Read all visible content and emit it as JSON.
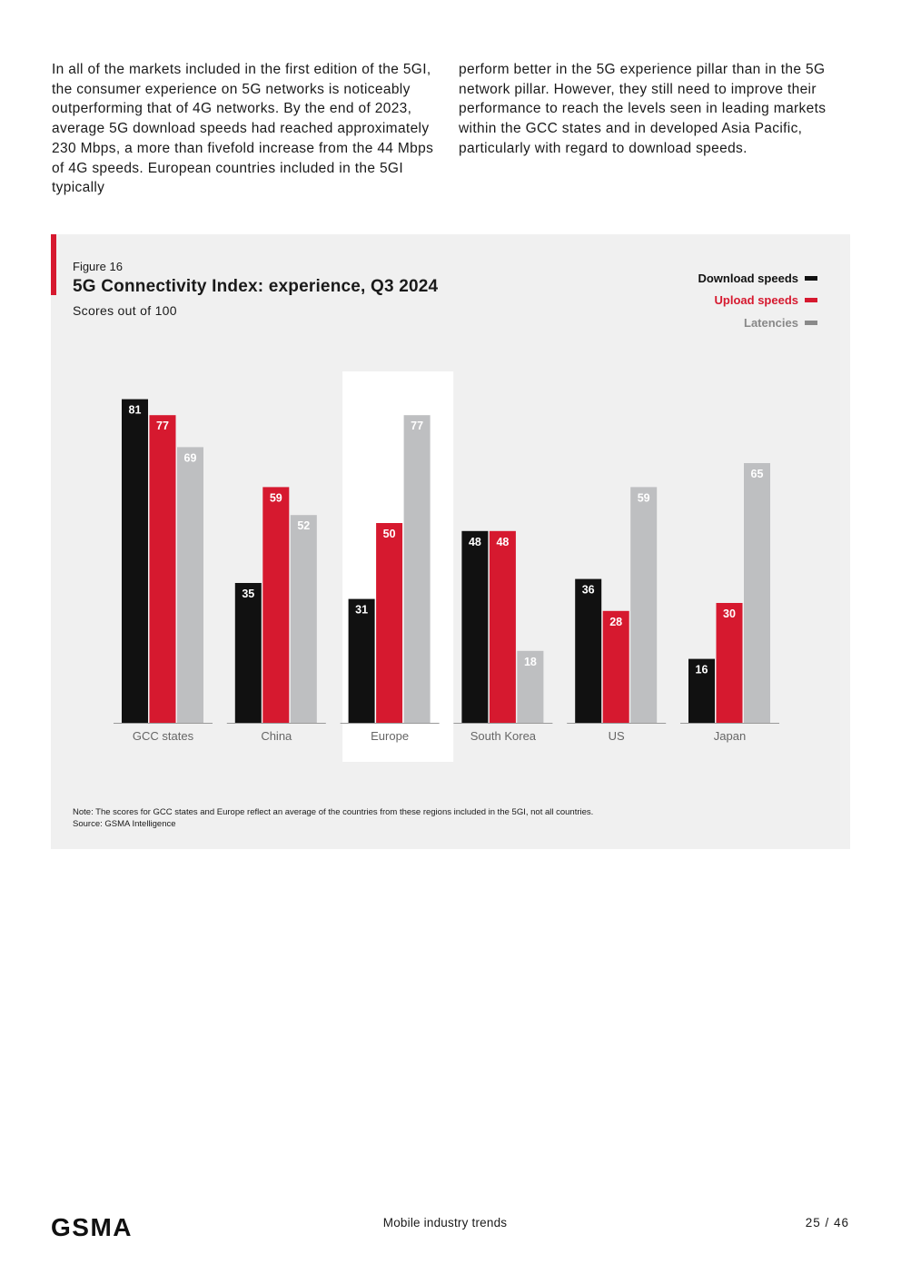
{
  "intro": {
    "col1": "In all of the markets included in the first edition of the 5GI, the consumer experience on 5G networks is noticeably outperforming that of 4G networks. By the end of 2023, average 5G download speeds had reached approximately 230 Mbps, a more than fivefold increase from the 44 Mbps of 4G speeds. European countries included in the 5GI typically",
    "col2": "perform better in the 5G experience pillar than in the 5G network pillar. However, they still need to improve their performance to reach the levels seen in leading markets within the GCC states and in developed Asia Pacific, particularly with regard to download speeds."
  },
  "figure": {
    "label": "Figure 16",
    "title": "5G Connectivity Index: experience, Q3 2024",
    "subtitle": "Scores out of 100",
    "note": "Note: The scores for GCC states and Europe reflect an average of the countries from these regions included in the 5GI, not all countries.",
    "source": "Source: GSMA Intelligence",
    "accent_color": "#d6192f",
    "background_color": "#f0f0f0"
  },
  "chart_data": {
    "type": "bar",
    "title": "5G Connectivity Index: experience, Q3 2024",
    "subtitle": "Scores out of 100",
    "categories": [
      "GCC states",
      "China",
      "Europe",
      "South Korea",
      "US",
      "Japan"
    ],
    "series": [
      {
        "name": "Download speeds",
        "color": "#111111",
        "label_color": "#ffffff",
        "values": [
          81,
          35,
          31,
          48,
          36,
          16
        ]
      },
      {
        "name": "Upload speeds",
        "color": "#d6192f",
        "label_color": "#ffffff",
        "values": [
          77,
          59,
          50,
          48,
          28,
          30
        ]
      },
      {
        "name": "Latencies",
        "color": "#bebfc1",
        "label_color": "#ffffff",
        "values": [
          69,
          52,
          77,
          18,
          59,
          65
        ]
      }
    ],
    "ylim": [
      0,
      100
    ],
    "highlight_category": "Europe",
    "legend_position": "top-right",
    "grid": false,
    "xlabel": "",
    "ylabel": ""
  },
  "footer": {
    "logo": "GSMA",
    "center": "Mobile industry trends",
    "page": "25 / 46"
  }
}
